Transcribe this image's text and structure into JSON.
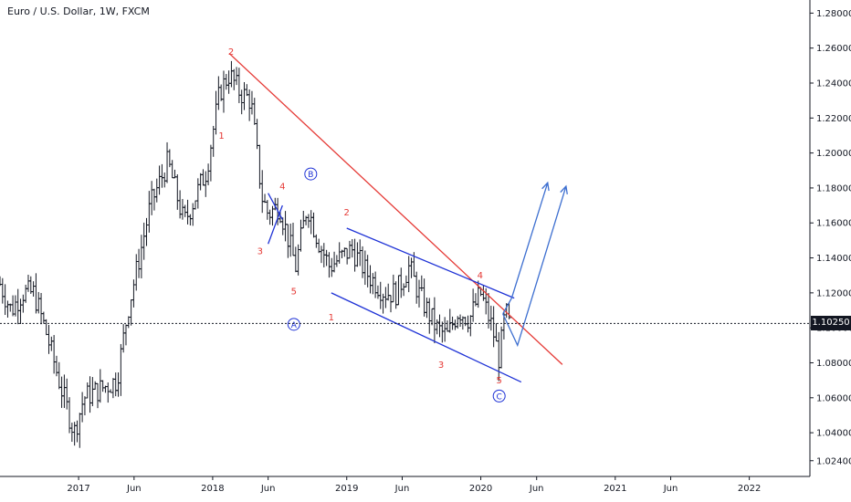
{
  "title": "Euro / U.S. Dollar, 1W, FXCM",
  "last_price": "1.10250",
  "colors": {
    "bars": "#131722",
    "red": "#e53935",
    "blue": "#1e32d6",
    "proj": "#3d6fd0",
    "grid_text": "#131722",
    "axis": "#131722"
  },
  "chart_data": {
    "type": "ohlc",
    "title": "Euro / U.S. Dollar, 1W, FXCM",
    "ylim": [
      1.015,
      1.2875
    ],
    "xlim": [
      "2016-06-01",
      "2022-06-15"
    ],
    "y_ticks": [
      "1.28000",
      "1.26000",
      "1.24000",
      "1.22000",
      "1.20000",
      "1.18000",
      "1.16000",
      "1.14000",
      "1.12000",
      "1.10000",
      "1.08000",
      "1.06000",
      "1.04000",
      "1.02400"
    ],
    "x_ticks": [
      {
        "label": "2017",
        "date": "2017-01-01"
      },
      {
        "label": "Jun",
        "date": "2017-06-01"
      },
      {
        "label": "2018",
        "date": "2018-01-01"
      },
      {
        "label": "Jun",
        "date": "2018-06-01"
      },
      {
        "label": "2019",
        "date": "2019-01-01"
      },
      {
        "label": "Jun",
        "date": "2019-06-01"
      },
      {
        "label": "2020",
        "date": "2020-01-01"
      },
      {
        "label": "Jun",
        "date": "2020-06-01"
      },
      {
        "label": "2021",
        "date": "2021-01-01"
      },
      {
        "label": "Jun",
        "date": "2021-06-01"
      },
      {
        "label": "2022",
        "date": "2022-01-01"
      }
    ],
    "price_path": [
      [
        "2016-06-01",
        1.125
      ],
      [
        "2016-07-01",
        1.11
      ],
      [
        "2016-08-01",
        1.12
      ],
      [
        "2016-09-01",
        1.12
      ],
      [
        "2016-10-01",
        1.1
      ],
      [
        "2016-11-15",
        1.065
      ],
      [
        "2016-12-20",
        1.04
      ],
      [
        "2017-01-15",
        1.06
      ],
      [
        "2017-03-01",
        1.065
      ],
      [
        "2017-04-15",
        1.07
      ],
      [
        "2017-05-15",
        1.11
      ],
      [
        "2017-06-15",
        1.14
      ],
      [
        "2017-07-15",
        1.17
      ],
      [
        "2017-09-01",
        1.195
      ],
      [
        "2017-10-15",
        1.16
      ],
      [
        "2017-11-15",
        1.175
      ],
      [
        "2017-12-15",
        1.19
      ],
      [
        "2018-01-20",
        1.235
      ],
      [
        "2018-02-15",
        1.245
      ],
      [
        "2018-03-15",
        1.235
      ],
      [
        "2018-04-15",
        1.23
      ],
      [
        "2018-05-15",
        1.175
      ],
      [
        "2018-06-01",
        1.165
      ],
      [
        "2018-07-01",
        1.17
      ],
      [
        "2018-08-15",
        1.135
      ],
      [
        "2018-09-15",
        1.17
      ],
      [
        "2018-10-15",
        1.15
      ],
      [
        "2018-11-15",
        1.135
      ],
      [
        "2018-12-15",
        1.14
      ],
      [
        "2019-01-15",
        1.145
      ],
      [
        "2019-03-01",
        1.13
      ],
      [
        "2019-04-15",
        1.12
      ],
      [
        "2019-05-15",
        1.12
      ],
      [
        "2019-06-20",
        1.135
      ],
      [
        "2019-07-15",
        1.12
      ],
      [
        "2019-09-01",
        1.1
      ],
      [
        "2019-10-01",
        1.095
      ],
      [
        "2019-11-01",
        1.11
      ],
      [
        "2019-12-01",
        1.105
      ],
      [
        "2019-12-31",
        1.12
      ],
      [
        "2020-02-01",
        1.1
      ],
      [
        "2020-02-20",
        1.082
      ],
      [
        "2020-03-08",
        1.11
      ],
      [
        "2020-03-20",
        1.1
      ]
    ],
    "lines": [
      {
        "name": "red-trendline",
        "color": "red",
        "points": [
          [
            "2018-02-15",
            1.257
          ],
          [
            "2020-08-10",
            1.079
          ]
        ]
      },
      {
        "name": "channel-upper",
        "color": "blue",
        "points": [
          [
            "2019-01-01",
            1.157
          ],
          [
            "2020-04-01",
            1.117
          ]
        ]
      },
      {
        "name": "channel-lower",
        "color": "blue",
        "points": [
          [
            "2018-11-20",
            1.12
          ],
          [
            "2020-04-20",
            1.069
          ]
        ]
      },
      {
        "name": "triangle-upper",
        "color": "blue",
        "points": [
          [
            "2018-06-01",
            1.177
          ],
          [
            "2018-07-10",
            1.162
          ]
        ]
      },
      {
        "name": "triangle-lower",
        "color": "blue",
        "points": [
          [
            "2018-06-01",
            1.148
          ],
          [
            "2018-07-10",
            1.17
          ]
        ]
      }
    ],
    "projections": [
      {
        "name": "projection-1",
        "points": [
          [
            "2020-03-01",
            1.108
          ],
          [
            "2020-03-25",
            1.117
          ],
          [
            "2020-07-01",
            1.183
          ]
        ]
      },
      {
        "name": "projection-2",
        "points": [
          [
            "2020-03-01",
            1.108
          ],
          [
            "2020-04-10",
            1.09
          ],
          [
            "2020-08-20",
            1.181
          ]
        ]
      }
    ],
    "wave_labels": [
      {
        "text": "2",
        "date": "2018-02-20",
        "price": 1.258,
        "color": "red",
        "circled": false
      },
      {
        "text": "1",
        "date": "2018-01-25",
        "price": 1.21,
        "color": "red",
        "circled": false
      },
      {
        "text": "4",
        "date": "2018-07-10",
        "price": 1.181,
        "color": "red",
        "circled": false
      },
      {
        "text": "3",
        "date": "2018-05-10",
        "price": 1.144,
        "color": "red",
        "circled": false
      },
      {
        "text": "5",
        "date": "2018-08-10",
        "price": 1.121,
        "color": "red",
        "circled": false
      },
      {
        "text": "A",
        "date": "2018-08-10",
        "price": 1.102,
        "color": "blue",
        "circled": true
      },
      {
        "text": "B",
        "date": "2018-09-25",
        "price": 1.188,
        "color": "blue",
        "circled": true
      },
      {
        "text": "2",
        "date": "2019-01-01",
        "price": 1.166,
        "color": "red",
        "circled": false
      },
      {
        "text": "1",
        "date": "2018-11-20",
        "price": 1.106,
        "color": "red",
        "circled": false
      },
      {
        "text": "3",
        "date": "2019-09-15",
        "price": 1.079,
        "color": "red",
        "circled": false
      },
      {
        "text": "4",
        "date": "2019-12-30",
        "price": 1.13,
        "color": "red",
        "circled": false
      },
      {
        "text": "5",
        "date": "2020-02-20",
        "price": 1.07,
        "color": "red",
        "circled": false
      },
      {
        "text": "C",
        "date": "2020-02-20",
        "price": 1.061,
        "color": "blue",
        "circled": true
      }
    ]
  }
}
